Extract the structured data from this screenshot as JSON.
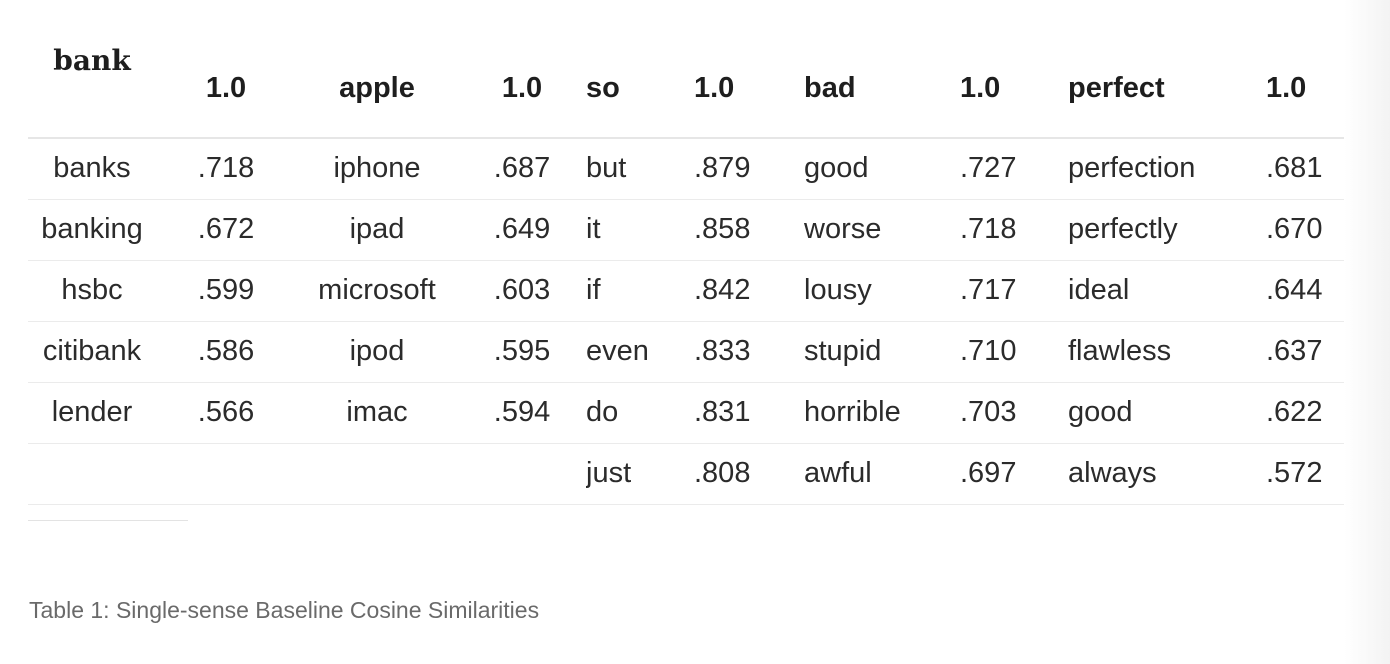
{
  "table": {
    "headers": [
      "bank",
      "1.0",
      "apple",
      "1.0",
      "so",
      "1.0",
      "bad",
      "1.0",
      "perfect",
      "1.0"
    ],
    "rows": [
      [
        "banks",
        ".718",
        "iphone",
        ".687",
        "but",
        ".879",
        "good",
        ".727",
        "perfection",
        ".681"
      ],
      [
        "banking",
        ".672",
        "ipad",
        ".649",
        "it",
        ".858",
        "worse",
        ".718",
        "perfectly",
        ".670"
      ],
      [
        "hsbc",
        ".599",
        "microsoft",
        ".603",
        "if",
        ".842",
        "lousy",
        ".717",
        "ideal",
        ".644"
      ],
      [
        "citibank",
        ".586",
        "ipod",
        ".595",
        "even",
        ".833",
        "stupid",
        ".710",
        "flawless",
        ".637"
      ],
      [
        "lender",
        ".566",
        "imac",
        ".594",
        "do",
        ".831",
        "horrible",
        ".703",
        "good",
        ".622"
      ],
      [
        "",
        "",
        "",
        "",
        "just",
        ".808",
        "awful",
        ".697",
        "always",
        ".572"
      ]
    ]
  },
  "caption": "Table 1: Single-sense Baseline Cosine Similarities"
}
